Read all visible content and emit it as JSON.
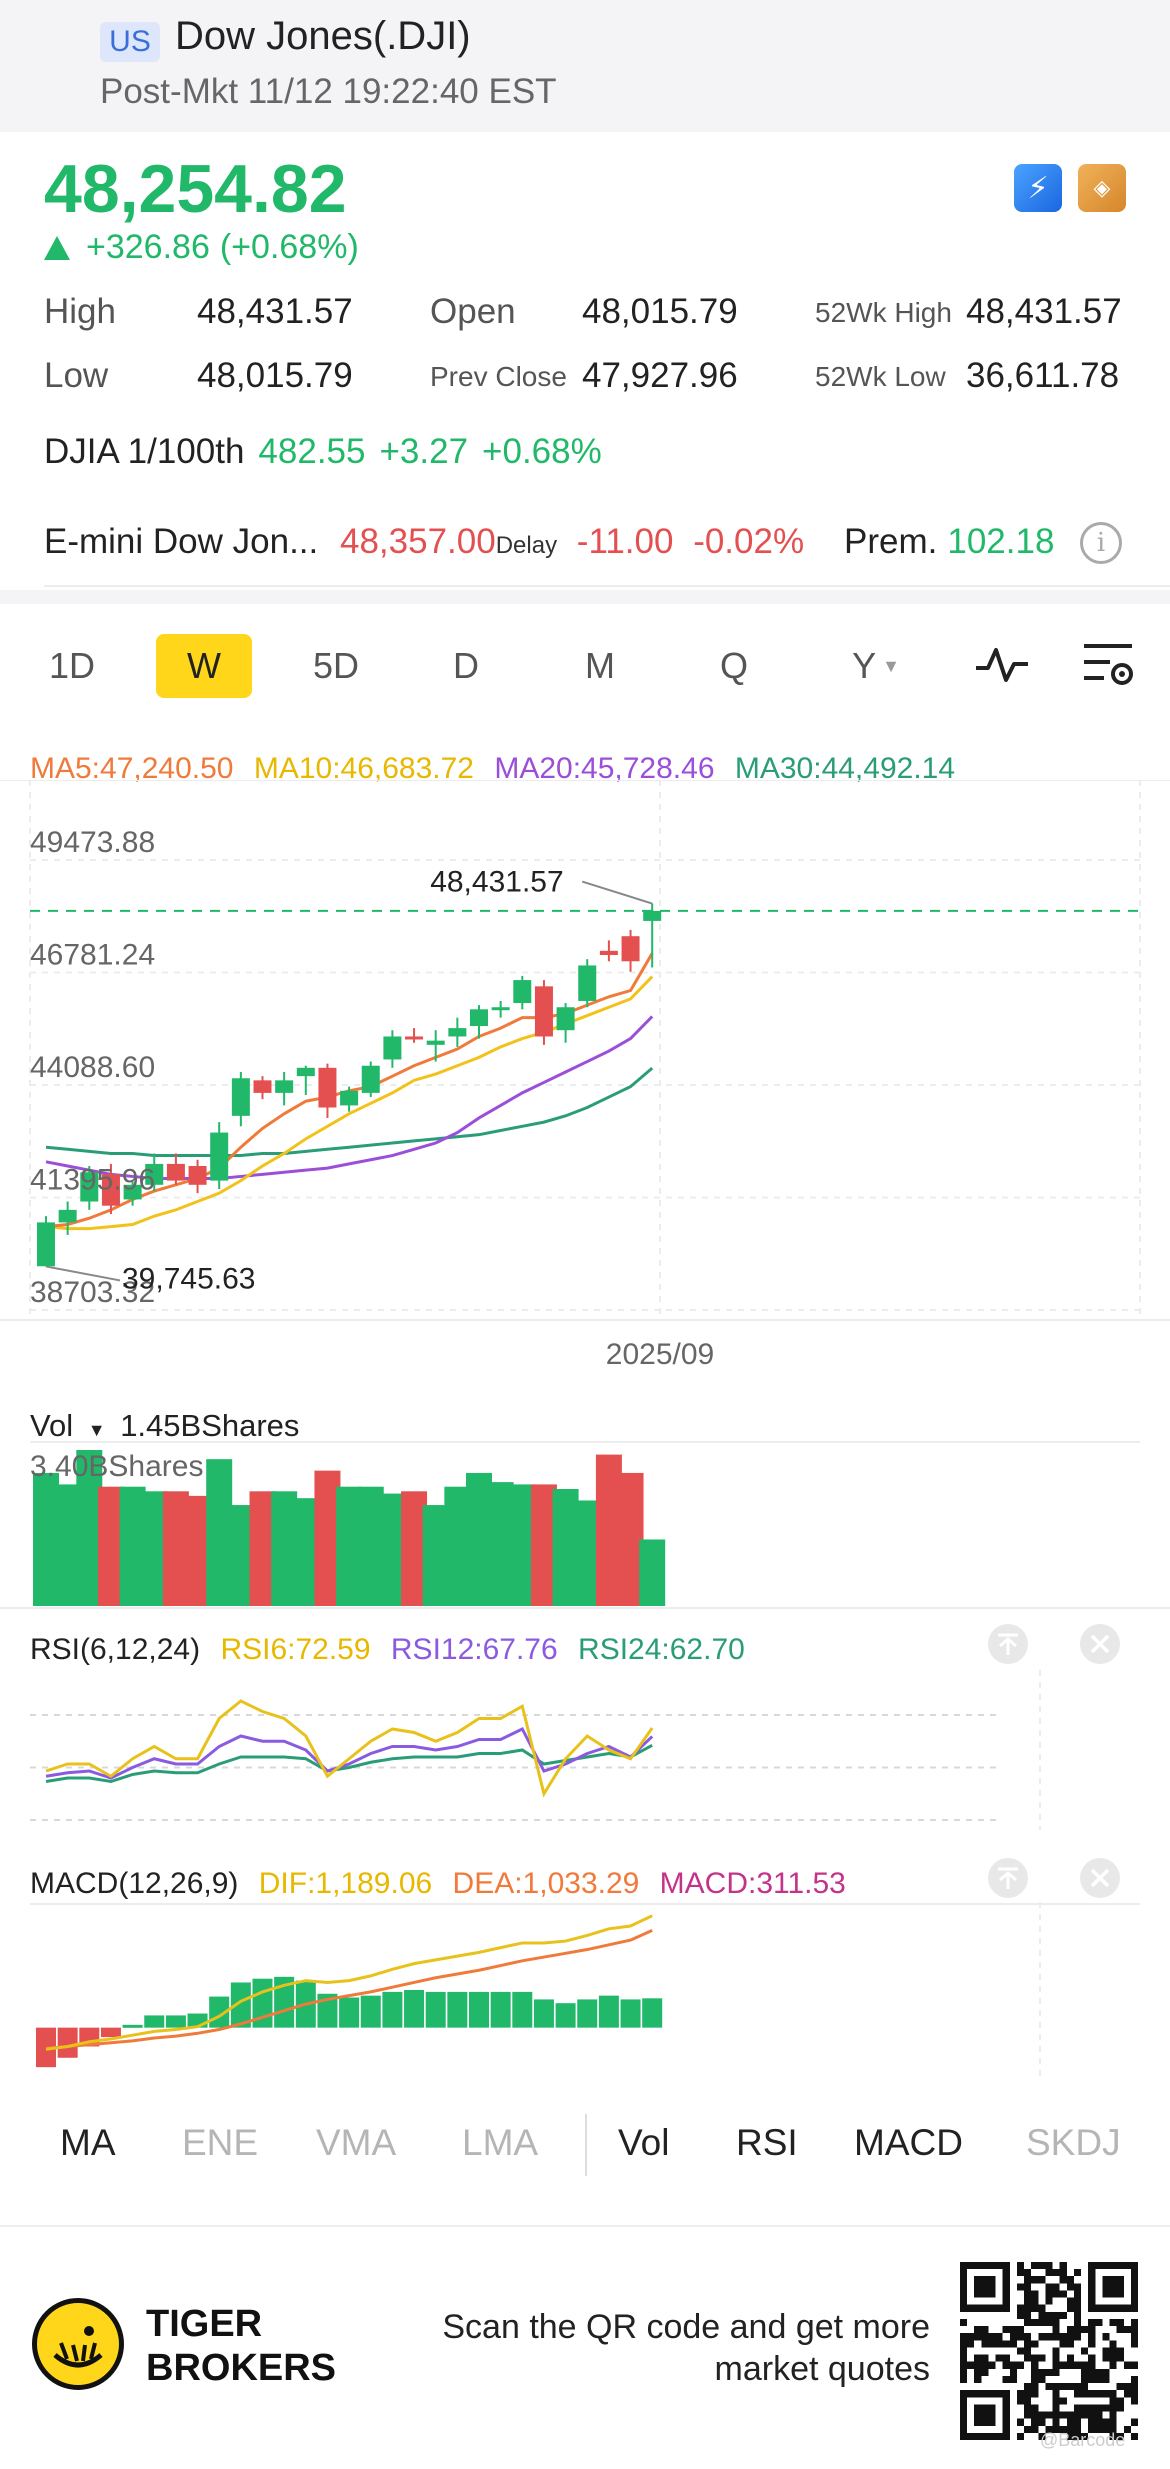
{
  "header": {
    "market_badge": "US",
    "title": "Dow Jones(.DJI)",
    "subtitle": "Post-Mkt 11/12 19:22:40 EST"
  },
  "quote": {
    "price": "48,254.82",
    "change": "+326.86",
    "change_pct": "(+0.68%)",
    "up_color": "#21b86a",
    "down_color": "#e3504f"
  },
  "stats": {
    "high_label": "High",
    "high": "48,431.57",
    "low_label": "Low",
    "low": "48,015.79",
    "open_label": "Open",
    "open": "48,015.79",
    "prev_close_label": "Prev Close",
    "prev_close": "47,927.96",
    "wk52_high_label": "52Wk High",
    "wk52_high": "48,431.57",
    "wk52_low_label": "52Wk Low",
    "wk52_low": "36,611.78"
  },
  "djia": {
    "label": "DJIA 1/100th",
    "price": "482.55",
    "change": "+3.27",
    "pct": "+0.68%"
  },
  "emini": {
    "label": "E-mini Dow Jon...",
    "price": "48,357.00",
    "delay": "Delay",
    "change": "-11.00",
    "pct": "-0.02%",
    "prem_label": "Prem.",
    "prem": "102.18"
  },
  "periods": [
    "1D",
    "W",
    "5D",
    "D",
    "M",
    "Q",
    "Y"
  ],
  "active_period": "W",
  "ma_legend": [
    {
      "text": "MA5:47,240.50",
      "color": "#f07a3a"
    },
    {
      "text": "MA10:46,683.72",
      "color": "#f2c21b"
    },
    {
      "text": "MA20:45,728.46",
      "color": "#9b4fd9"
    },
    {
      "text": "MA30:44,492.14",
      "color": "#2a9d78"
    }
  ],
  "volume": {
    "label": "Vol",
    "value": "1.45BShares",
    "axis_max": "3.40BShares"
  },
  "rsi": {
    "label": "RSI(6,12,24)",
    "rsi6": "RSI6:72.59",
    "rsi12": "RSI12:67.76",
    "rsi24": "RSI24:62.70"
  },
  "macd": {
    "label": "MACD(12,26,9)",
    "dif": "DIF:1,189.06",
    "dea": "DEA:1,033.29",
    "macd": "MACD:311.53"
  },
  "indicator_tabs": [
    {
      "label": "MA",
      "active": true
    },
    {
      "label": "ENE",
      "active": false
    },
    {
      "label": "VMA",
      "active": false
    },
    {
      "label": "LMA",
      "active": false
    },
    {
      "label": "Vol",
      "active": true
    },
    {
      "label": "RSI",
      "active": true
    },
    {
      "label": "MACD",
      "active": true
    },
    {
      "label": "SKDJ",
      "active": false
    }
  ],
  "footer": {
    "brand_line1": "TIGER",
    "brand_line2": "BROKERS",
    "scan_text": "Scan the QR code and get more market quotes",
    "watermark": "@Barcode"
  },
  "chart_data": {
    "type": "candlestick",
    "interval": "weekly",
    "x_label": "2025/09",
    "y_ticks": [
      "49473.88",
      "46781.24",
      "44088.60",
      "41395.96",
      "38703.32"
    ],
    "ylim": [
      38703.32,
      49473.88
    ],
    "high_marker": "48,431.57",
    "low_marker": "39,745.63",
    "last_close": 48254.82,
    "candles": [
      {
        "o": 39750,
        "h": 40950,
        "l": 39745.63,
        "c": 40800
      },
      {
        "o": 40800,
        "h": 41300,
        "l": 40500,
        "c": 41100
      },
      {
        "o": 41300,
        "h": 42150,
        "l": 41100,
        "c": 42000
      },
      {
        "o": 41950,
        "h": 42200,
        "l": 41000,
        "c": 41200
      },
      {
        "o": 41350,
        "h": 41800,
        "l": 41200,
        "c": 41700
      },
      {
        "o": 41700,
        "h": 42450,
        "l": 41550,
        "c": 42200
      },
      {
        "o": 42200,
        "h": 42450,
        "l": 41700,
        "c": 41800
      },
      {
        "o": 42150,
        "h": 42300,
        "l": 41500,
        "c": 41700
      },
      {
        "o": 41800,
        "h": 43200,
        "l": 41600,
        "c": 42950
      },
      {
        "o": 43350,
        "h": 44400,
        "l": 43100,
        "c": 44250
      },
      {
        "o": 44200,
        "h": 44300,
        "l": 43750,
        "c": 43900
      },
      {
        "o": 43900,
        "h": 44400,
        "l": 43600,
        "c": 44200
      },
      {
        "o": 44300,
        "h": 44550,
        "l": 43850,
        "c": 44500
      },
      {
        "o": 44500,
        "h": 44600,
        "l": 43300,
        "c": 43550
      },
      {
        "o": 43600,
        "h": 44050,
        "l": 43450,
        "c": 43950
      },
      {
        "o": 43900,
        "h": 44650,
        "l": 43800,
        "c": 44550
      },
      {
        "o": 44700,
        "h": 45400,
        "l": 44500,
        "c": 45250
      },
      {
        "o": 45250,
        "h": 45450,
        "l": 45100,
        "c": 45200
      },
      {
        "o": 45050,
        "h": 45400,
        "l": 44650,
        "c": 45150
      },
      {
        "o": 45250,
        "h": 45700,
        "l": 45000,
        "c": 45450
      },
      {
        "o": 45500,
        "h": 46000,
        "l": 45200,
        "c": 45900
      },
      {
        "o": 45950,
        "h": 46100,
        "l": 45700,
        "c": 45950
      },
      {
        "o": 46050,
        "h": 46700,
        "l": 45900,
        "c": 46600
      },
      {
        "o": 46450,
        "h": 46600,
        "l": 45050,
        "c": 45250
      },
      {
        "o": 45400,
        "h": 46050,
        "l": 45100,
        "c": 45950
      },
      {
        "o": 46100,
        "h": 47100,
        "l": 45950,
        "c": 46950
      },
      {
        "o": 47300,
        "h": 47550,
        "l": 47050,
        "c": 47200
      },
      {
        "o": 47650,
        "h": 47800,
        "l": 46800,
        "c": 47050
      },
      {
        "o": 48015.79,
        "h": 48431.57,
        "l": 46900,
        "c": 48254.82
      }
    ],
    "ma5": [
      40700,
      40750,
      40900,
      41100,
      41350,
      41550,
      41700,
      41850,
      42100,
      42600,
      43050,
      43400,
      43700,
      43800,
      43950,
      44050,
      44300,
      44550,
      44750,
      44950,
      45250,
      45450,
      45700,
      45700,
      45800,
      46000,
      46200,
      46350,
      47240.5
    ],
    "ma10": [
      40700,
      40650,
      40650,
      40700,
      40750,
      40950,
      41100,
      41300,
      41500,
      41800,
      42150,
      42450,
      42800,
      43100,
      43400,
      43650,
      43900,
      44200,
      44350,
      44550,
      44750,
      45000,
      45200,
      45350,
      45550,
      45750,
      45950,
      46150,
      46683.72
    ],
    "ma20": [
      42250,
      42150,
      42050,
      41950,
      41900,
      41850,
      41850,
      41850,
      41850,
      41900,
      41950,
      42000,
      42050,
      42100,
      42200,
      42300,
      42400,
      42550,
      42700,
      42950,
      43300,
      43600,
      43900,
      44150,
      44400,
      44650,
      44900,
      45200,
      45728.46
    ],
    "ma30": [
      42600,
      42550,
      42500,
      42450,
      42450,
      42400,
      42400,
      42400,
      42400,
      42400,
      42450,
      42450,
      42500,
      42550,
      42600,
      42650,
      42700,
      42750,
      42800,
      42850,
      42900,
      43000,
      43100,
      43200,
      43350,
      43550,
      43800,
      44050,
      44492.14
    ],
    "volume": [
      2.9,
      2.65,
      3.4,
      2.6,
      2.6,
      2.5,
      2.5,
      2.4,
      3.2,
      2.2,
      2.5,
      2.5,
      2.35,
      2.95,
      2.6,
      2.6,
      2.45,
      2.5,
      2.2,
      2.6,
      2.9,
      2.7,
      2.65,
      2.65,
      2.55,
      2.3,
      3.3,
      2.9,
      1.45
    ],
    "volume_max": 3.4,
    "rsi6": [
      48,
      52,
      52,
      45,
      55,
      62,
      55,
      55,
      78,
      88,
      82,
      78,
      68,
      45,
      55,
      65,
      72,
      70,
      65,
      70,
      78,
      78,
      85,
      35,
      55,
      68,
      60,
      55,
      72.59
    ],
    "rsi12": [
      45,
      47,
      48,
      44,
      50,
      55,
      52,
      52,
      62,
      68,
      65,
      65,
      60,
      48,
      52,
      58,
      62,
      62,
      60,
      62,
      66,
      66,
      72,
      48,
      52,
      58,
      62,
      56,
      67.76
    ],
    "rsi24": [
      42,
      44,
      44,
      42,
      46,
      48,
      47,
      47,
      52,
      56,
      56,
      56,
      55,
      48,
      50,
      53,
      55,
      56,
      56,
      56,
      58,
      58,
      60,
      52,
      54,
      56,
      58,
      56,
      62.7
    ],
    "rsi_range": [
      20,
      100
    ],
    "dif": [
      -230,
      -200,
      -150,
      -120,
      -80,
      -40,
      -20,
      10,
      120,
      280,
      380,
      450,
      500,
      480,
      500,
      550,
      620,
      680,
      720,
      760,
      800,
      850,
      900,
      900,
      920,
      980,
      1050,
      1080,
      1189.06
    ],
    "dea": [
      -220,
      -200,
      -180,
      -160,
      -140,
      -110,
      -90,
      -60,
      -20,
      40,
      110,
      180,
      250,
      300,
      340,
      380,
      430,
      480,
      530,
      570,
      610,
      660,
      710,
      750,
      790,
      830,
      880,
      930,
      1033.29
    ],
    "macd_hist": [
      -420,
      -320,
      -200,
      -100,
      30,
      130,
      130,
      150,
      330,
      480,
      520,
      540,
      500,
      360,
      320,
      340,
      380,
      400,
      380,
      380,
      380,
      380,
      380,
      300,
      260,
      300,
      340,
      300,
      311.53
    ],
    "macd_range": [
      -450,
      1250
    ]
  }
}
